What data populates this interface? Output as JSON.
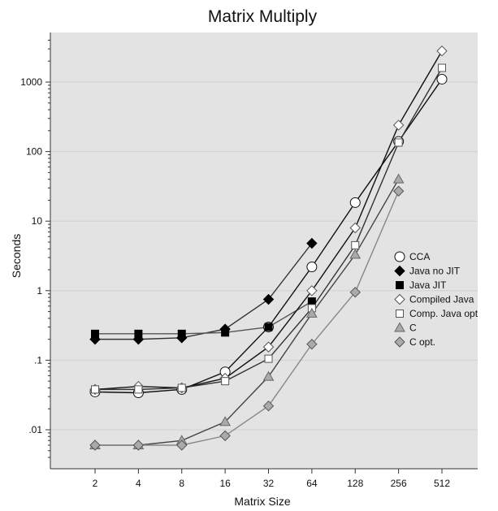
{
  "chart_data": {
    "type": "line",
    "title": "Matrix Multiply",
    "xlabel": "Matrix Size",
    "ylabel": "Seconds",
    "x": [
      2,
      4,
      8,
      16,
      32,
      64,
      128,
      256,
      512
    ],
    "x_ticks": [
      "2",
      "4",
      "8",
      "16",
      "32",
      "64",
      "128",
      "256",
      "512"
    ],
    "y_scale": "log",
    "ylim": [
      0.004,
      4000
    ],
    "y_ticks": [
      {
        "value": 0.01,
        "label": ".01"
      },
      {
        "value": 0.1,
        "label": ".1"
      },
      {
        "value": 1,
        "label": "1"
      },
      {
        "value": 10,
        "label": "10"
      },
      {
        "value": 100,
        "label": "100"
      },
      {
        "value": 1000,
        "label": "1000"
      }
    ],
    "grid": true,
    "legend_position": "right",
    "series": [
      {
        "name": "CCA",
        "marker": "circle",
        "fill": "#ffffff",
        "line": "#111111",
        "values": [
          0.035,
          0.034,
          0.038,
          0.068,
          0.3,
          2.2,
          18.5,
          140,
          1100
        ]
      },
      {
        "name": "Java no JIT",
        "marker": "diamond",
        "fill": "#000000",
        "line": "#333333",
        "values": [
          0.2,
          0.2,
          0.21,
          0.28,
          0.75,
          4.8,
          null,
          null,
          null
        ]
      },
      {
        "name": "Java JIT",
        "marker": "square",
        "fill": "#000000",
        "line": "#555555",
        "values": [
          0.24,
          0.24,
          0.24,
          0.25,
          0.3,
          0.7,
          null,
          null,
          null
        ]
      },
      {
        "name": "Compiled Java",
        "marker": "diamond",
        "fill": "#ffffff",
        "line": "#111111",
        "values": [
          0.038,
          0.042,
          0.04,
          0.055,
          0.155,
          1.0,
          8.0,
          240,
          2800
        ]
      },
      {
        "name": "Comp. Java opt",
        "marker": "square",
        "fill": "#ffffff",
        "line": "#333333",
        "values": [
          0.038,
          0.038,
          0.04,
          0.05,
          0.105,
          0.56,
          4.5,
          135,
          1600
        ]
      },
      {
        "name": "C",
        "marker": "triangle",
        "fill": "#aaaaaa",
        "line": "#444444",
        "values": [
          0.006,
          0.006,
          0.007,
          0.013,
          0.058,
          0.47,
          3.3,
          40,
          null
        ]
      },
      {
        "name": "C opt.",
        "marker": "diamond",
        "fill": "#aaaaaa",
        "line": "#888888",
        "values": [
          0.006,
          0.006,
          0.006,
          0.0082,
          0.022,
          0.17,
          0.95,
          27,
          null
        ]
      }
    ]
  }
}
